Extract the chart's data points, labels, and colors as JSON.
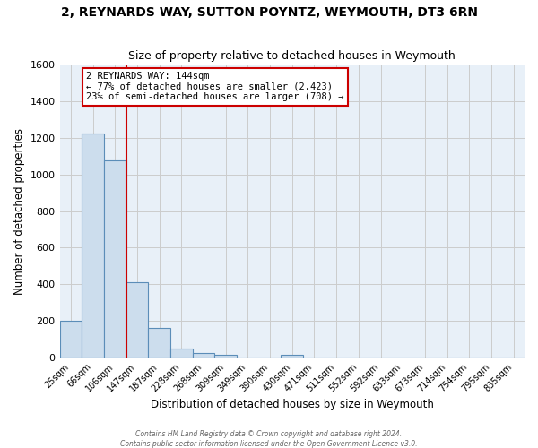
{
  "title": "2, REYNARDS WAY, SUTTON POYNTZ, WEYMOUTH, DT3 6RN",
  "subtitle": "Size of property relative to detached houses in Weymouth",
  "xlabel": "Distribution of detached houses by size in Weymouth",
  "ylabel": "Number of detached properties",
  "bar_labels": [
    "25sqm",
    "66sqm",
    "106sqm",
    "147sqm",
    "187sqm",
    "228sqm",
    "268sqm",
    "309sqm",
    "349sqm",
    "390sqm",
    "430sqm",
    "471sqm",
    "511sqm",
    "552sqm",
    "592sqm",
    "633sqm",
    "673sqm",
    "714sqm",
    "754sqm",
    "795sqm",
    "835sqm"
  ],
  "bar_values": [
    200,
    1225,
    1075,
    410,
    160,
    50,
    25,
    15,
    0,
    0,
    15,
    0,
    0,
    0,
    0,
    0,
    0,
    0,
    0,
    0,
    0
  ],
  "bar_color": "#ccdded",
  "bar_edge_color": "#5b8db8",
  "property_line_color": "#cc0000",
  "annotation_title": "2 REYNARDS WAY: 144sqm",
  "annotation_line1": "← 77% of detached houses are smaller (2,423)",
  "annotation_line2": "23% of semi-detached houses are larger (708) →",
  "annotation_box_color": "#ffffff",
  "annotation_box_edge": "#cc0000",
  "ylim": [
    0,
    1600
  ],
  "yticks": [
    0,
    200,
    400,
    600,
    800,
    1000,
    1200,
    1400,
    1600
  ],
  "grid_color": "#cccccc",
  "background_color": "#e8f0f8",
  "footer1": "Contains HM Land Registry data © Crown copyright and database right 2024.",
  "footer2": "Contains public sector information licensed under the Open Government Licence v3.0."
}
